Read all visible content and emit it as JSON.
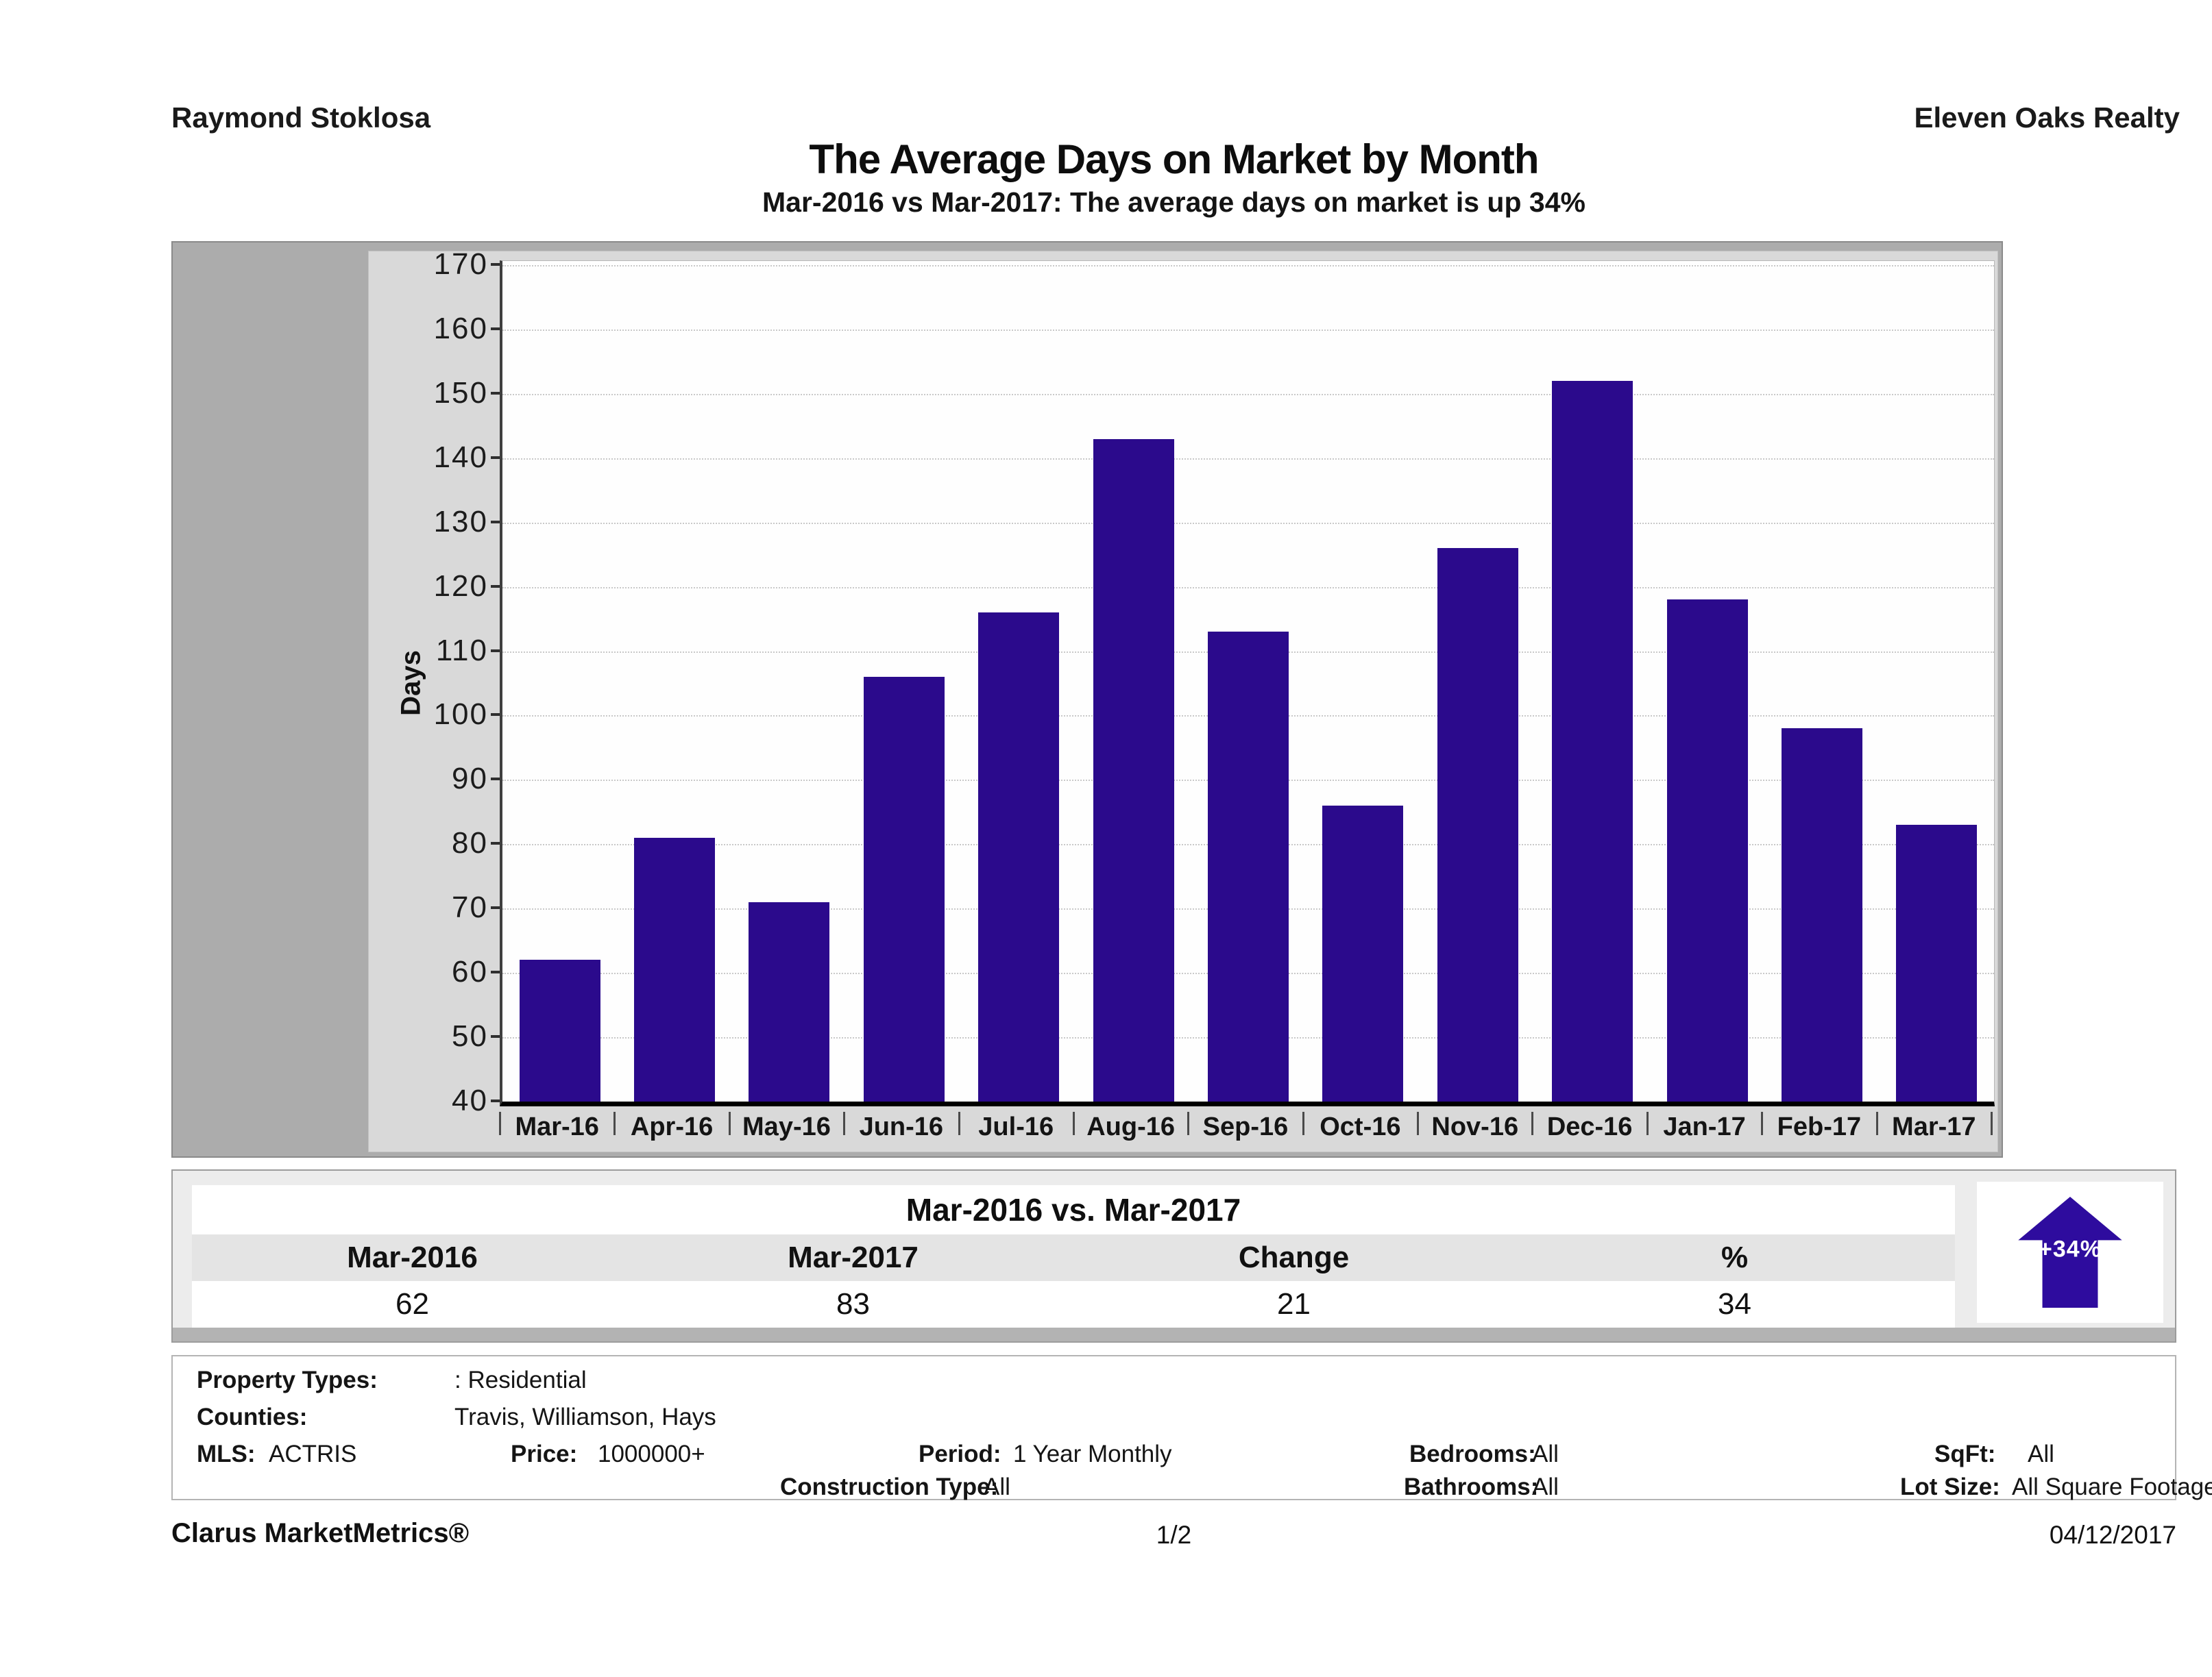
{
  "header": {
    "agent_name": "Raymond Stoklosa",
    "company_name": "Eleven Oaks Realty"
  },
  "title": "The Average Days on Market by Month",
  "subtitle": "Mar-2016 vs Mar-2017: The average days on market is up 34%",
  "chart_data": {
    "type": "bar",
    "title": "The Average Days on Market by Month",
    "xlabel": "",
    "ylabel": "Days",
    "ylim": [
      40,
      170
    ],
    "ytick_step": 10,
    "yticks": [
      40,
      50,
      60,
      70,
      80,
      90,
      100,
      110,
      120,
      130,
      140,
      150,
      160,
      170
    ],
    "grid": true,
    "legend_position": "none",
    "bar_color": "#2b0a8c",
    "categories": [
      "Mar-16",
      "Apr-16",
      "May-16",
      "Jun-16",
      "Jul-16",
      "Aug-16",
      "Sep-16",
      "Oct-16",
      "Nov-16",
      "Dec-16",
      "Jan-17",
      "Feb-17",
      "Mar-17"
    ],
    "values": [
      62,
      81,
      71,
      106,
      116,
      143,
      113,
      86,
      126,
      152,
      118,
      98,
      83
    ]
  },
  "comparison_table": {
    "title": "Mar-2016 vs. Mar-2017",
    "columns": [
      "Mar-2016",
      "Mar-2017",
      "Change",
      "%"
    ],
    "values": [
      "62",
      "83",
      "21",
      "34"
    ],
    "badge": {
      "label": "+34%",
      "direction": "up",
      "arrow_color": "#2e0c9e"
    }
  },
  "details": [
    {
      "id": "property_types",
      "label": "Property Types:",
      "value": ": Residential"
    },
    {
      "id": "counties",
      "label": "Counties:",
      "value": "Travis, Williamson, Hays"
    },
    {
      "id": "mls",
      "label": "MLS:",
      "value": "ACTRIS"
    },
    {
      "id": "price",
      "label": "Price:",
      "value": "1000000+"
    },
    {
      "id": "period",
      "label": "Period:",
      "value": "1 Year Monthly"
    },
    {
      "id": "bedrooms",
      "label": "Bedrooms:",
      "value": "All"
    },
    {
      "id": "sqft",
      "label": "SqFt:",
      "value": "All"
    },
    {
      "id": "construction_type",
      "label": "Construction Type:",
      "value": "All"
    },
    {
      "id": "bathrooms",
      "label": "Bathrooms:",
      "value": "All"
    },
    {
      "id": "lot_size",
      "label": "Lot Size:",
      "value": "All Square Footage"
    }
  ],
  "footer": {
    "left": "Clarus MarketMetrics®",
    "center": "1/2",
    "right": "04/12/2017"
  }
}
